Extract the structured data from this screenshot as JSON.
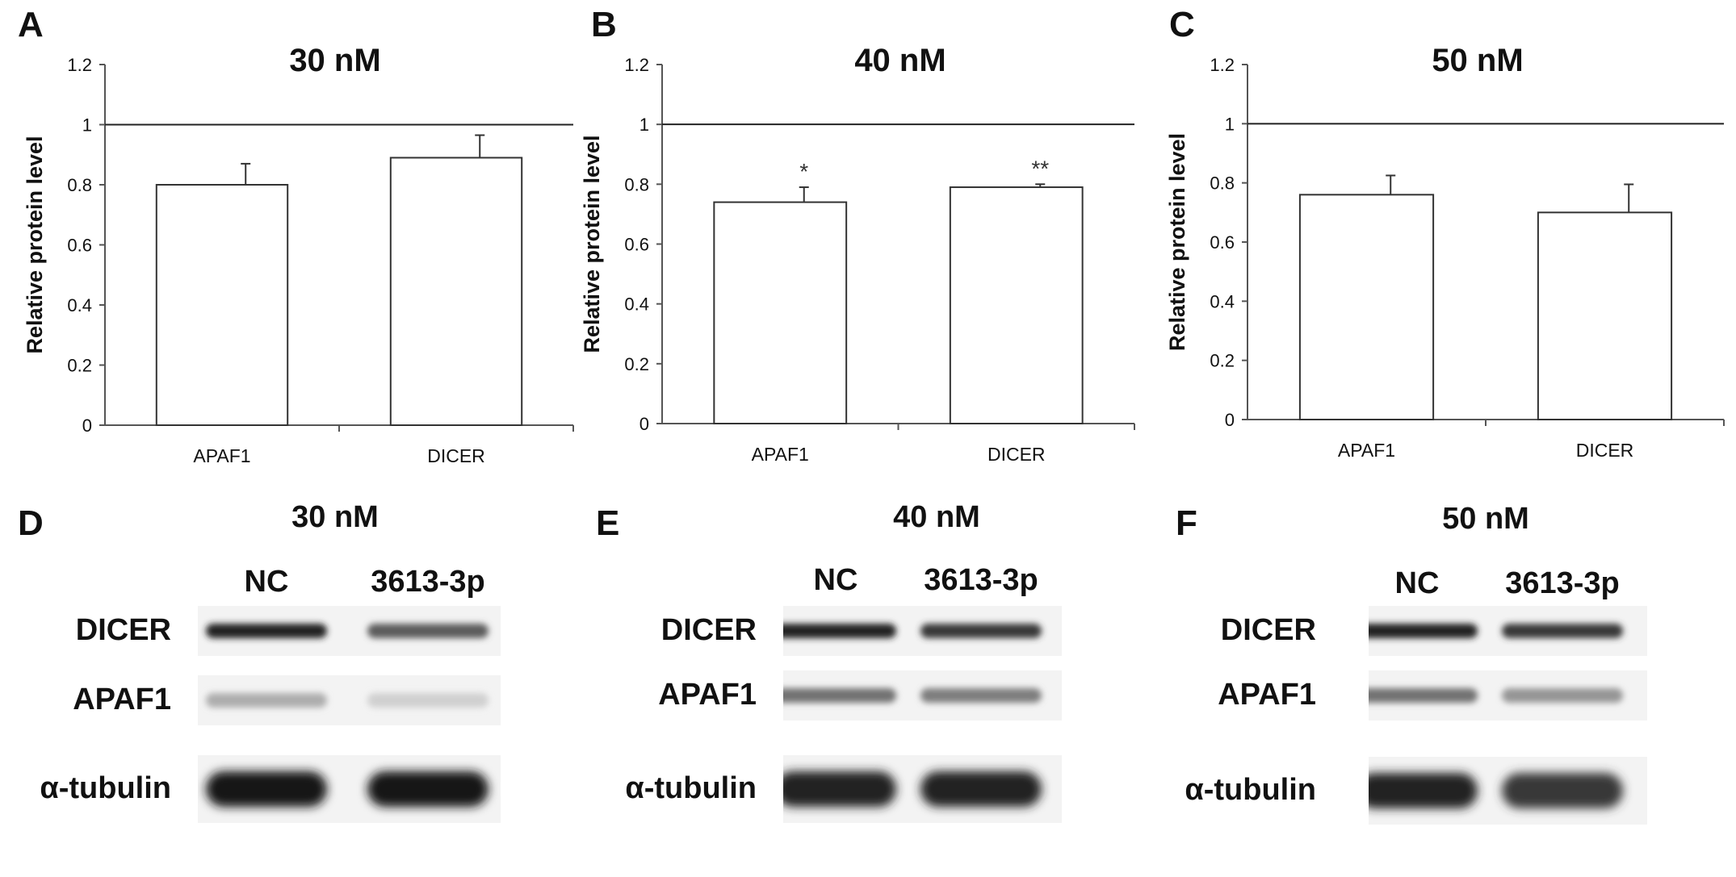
{
  "panels": {
    "A": "A",
    "B": "B",
    "C": "C",
    "D": "D",
    "E": "E",
    "F": "F"
  },
  "chart_data": [
    {
      "type": "bar",
      "title": "30 nM",
      "ylabel": "Relative protein level",
      "xlabel": "",
      "categories": [
        "APAF1",
        "DICER"
      ],
      "values": [
        0.8,
        0.89
      ],
      "errors": [
        0.07,
        0.075
      ],
      "annotations": [
        "",
        ""
      ],
      "reference_line": 1,
      "ylim": [
        0,
        1.2
      ],
      "yticks": [
        "0",
        "0.2",
        "0.4",
        "0.6",
        "0.8",
        "1",
        "1.2"
      ],
      "grid": false
    },
    {
      "type": "bar",
      "title": "40 nM",
      "ylabel": "Relative protein level",
      "xlabel": "",
      "categories": [
        "APAF1",
        "DICER"
      ],
      "values": [
        0.74,
        0.79
      ],
      "errors": [
        0.05,
        0.01
      ],
      "annotations": [
        "*",
        "**"
      ],
      "reference_line": 1,
      "ylim": [
        0,
        1.2
      ],
      "yticks": [
        "0",
        "0.2",
        "0.4",
        "0.6",
        "0.8",
        "1",
        "1.2"
      ],
      "grid": false
    },
    {
      "type": "bar",
      "title": "50 nM",
      "ylabel": "Relative protein level",
      "xlabel": "",
      "categories": [
        "APAF1",
        "DICER"
      ],
      "values": [
        0.76,
        0.7
      ],
      "errors": [
        0.065,
        0.095
      ],
      "annotations": [
        "",
        ""
      ],
      "reference_line": 1,
      "ylim": [
        0,
        1.2
      ],
      "yticks": [
        "0",
        "0.2",
        "0.4",
        "0.6",
        "0.8",
        "1",
        "1.2"
      ],
      "grid": false
    }
  ],
  "blots": [
    {
      "title": "30 nM",
      "lanes": [
        "NC",
        "3613-3p"
      ],
      "rows": [
        "DICER",
        "APAF1",
        "α-tubulin"
      ],
      "band_intensity": [
        [
          0.95,
          0.7
        ],
        [
          0.35,
          0.2
        ],
        [
          1.0,
          1.0
        ]
      ]
    },
    {
      "title": "40 nM",
      "lanes": [
        "NC",
        "3613-3p"
      ],
      "rows": [
        "DICER",
        "APAF1",
        "α-tubulin"
      ],
      "band_intensity": [
        [
          0.95,
          0.85
        ],
        [
          0.6,
          0.55
        ],
        [
          0.95,
          0.95
        ]
      ]
    },
    {
      "title": "50 nM",
      "lanes": [
        "NC",
        "3613-3p"
      ],
      "rows": [
        "DICER",
        "APAF1",
        "α-tubulin"
      ],
      "band_intensity": [
        [
          0.95,
          0.85
        ],
        [
          0.6,
          0.45
        ],
        [
          0.95,
          0.85
        ]
      ]
    }
  ]
}
